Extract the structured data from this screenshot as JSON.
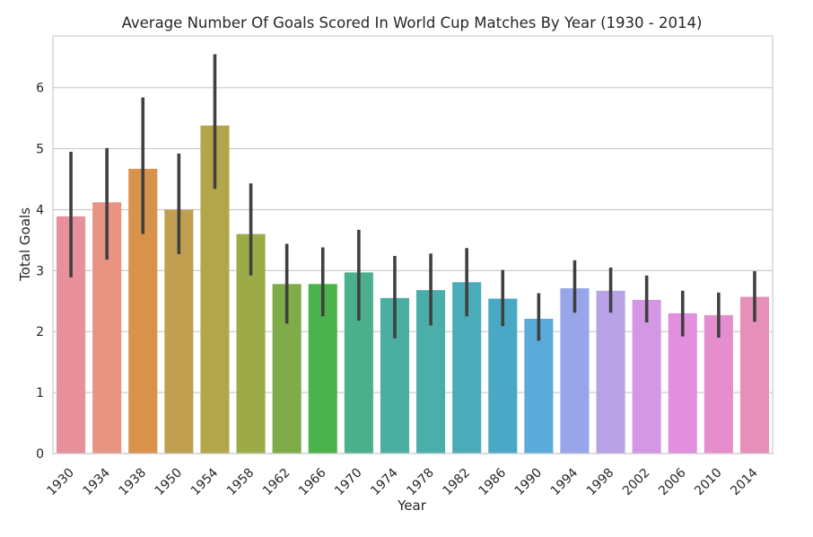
{
  "chart_data": {
    "type": "bar",
    "title": "Average Number Of Goals Scored In World Cup Matches By Year (1930 - 2014)",
    "xlabel": "Year",
    "ylabel": "Total Goals",
    "ylim": [
      0,
      6.85
    ],
    "yticks": [
      0,
      1,
      2,
      3,
      4,
      5,
      6
    ],
    "grid": "horizontal",
    "categories": [
      "1930",
      "1934",
      "1938",
      "1950",
      "1954",
      "1958",
      "1962",
      "1966",
      "1970",
      "1974",
      "1978",
      "1982",
      "1986",
      "1990",
      "1994",
      "1998",
      "2002",
      "2006",
      "2010",
      "2014"
    ],
    "values": [
      3.89,
      4.12,
      4.67,
      4.0,
      5.38,
      3.6,
      2.78,
      2.78,
      2.97,
      2.55,
      2.68,
      2.81,
      2.54,
      2.21,
      2.71,
      2.67,
      2.52,
      2.3,
      2.27,
      2.57
    ],
    "ci_low": [
      2.89,
      3.18,
      3.6,
      3.27,
      4.34,
      2.92,
      2.13,
      2.25,
      2.18,
      1.89,
      2.1,
      2.25,
      2.09,
      1.85,
      2.31,
      2.31,
      2.15,
      1.92,
      1.9,
      2.16
    ],
    "ci_high": [
      4.95,
      5.01,
      5.84,
      4.92,
      6.55,
      4.43,
      3.44,
      3.38,
      3.67,
      3.24,
      3.28,
      3.37,
      3.01,
      2.63,
      3.17,
      3.05,
      2.92,
      2.67,
      2.64,
      2.99
    ],
    "colors": [
      "#e8919c",
      "#e79482",
      "#d9924a",
      "#c0a050",
      "#b3a54a",
      "#9cab48",
      "#7fac48",
      "#4cb34c",
      "#4cb08c",
      "#4aaea0",
      "#4aaeaa",
      "#4cabb8",
      "#4aa8c6",
      "#5aabd9",
      "#96a6e8",
      "#b7a2e6",
      "#d497e3",
      "#e28fe0",
      "#e58ece",
      "#e68fb9"
    ],
    "errorbar_color": "#404040",
    "grid_color": "#cccccc",
    "frame_color": "#cccccc"
  }
}
